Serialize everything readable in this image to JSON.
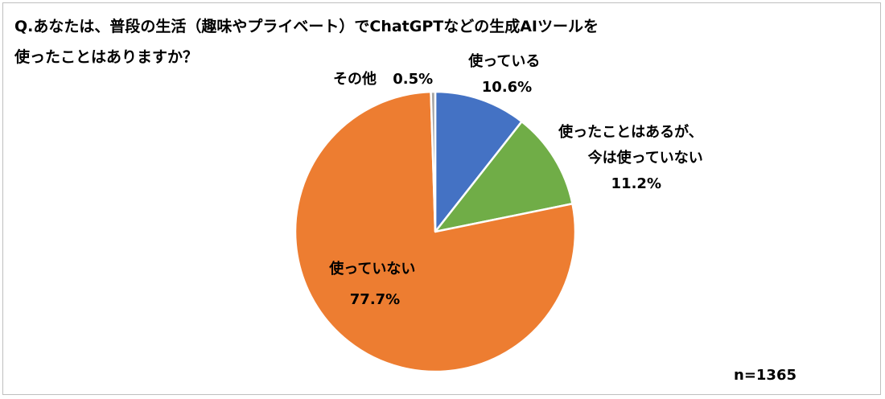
{
  "title_lines": [
    "Q.あなたは、普段の生活（趣味やプライベート）でChatGPTなどの生成AIツールを",
    "使ったことはありますか？"
  ],
  "sample_note": "n=1365",
  "chart_data": {
    "type": "pie",
    "slices": [
      {
        "label": "使っている",
        "label_lines": [
          "使っている"
        ],
        "value": 10.6,
        "value_text": "10.6%",
        "color": "#4472C4"
      },
      {
        "label": "使ったことはあるが、今は使っていない",
        "label_lines": [
          "使ったことはあるが、",
          "今は使っていない"
        ],
        "value": 11.2,
        "value_text": "11.2%",
        "color": "#70AD47"
      },
      {
        "label": "使っていない",
        "label_lines": [
          "使っていない"
        ],
        "value": 77.7,
        "value_text": "77.7%",
        "color": "#ED7D31"
      },
      {
        "label": "その他",
        "label_lines": [
          "その他"
        ],
        "value": 0.5,
        "value_text": "0.5%",
        "color": "#A5A5A5"
      }
    ],
    "start_angle": "12 o'clock",
    "direction": "clockwise"
  }
}
